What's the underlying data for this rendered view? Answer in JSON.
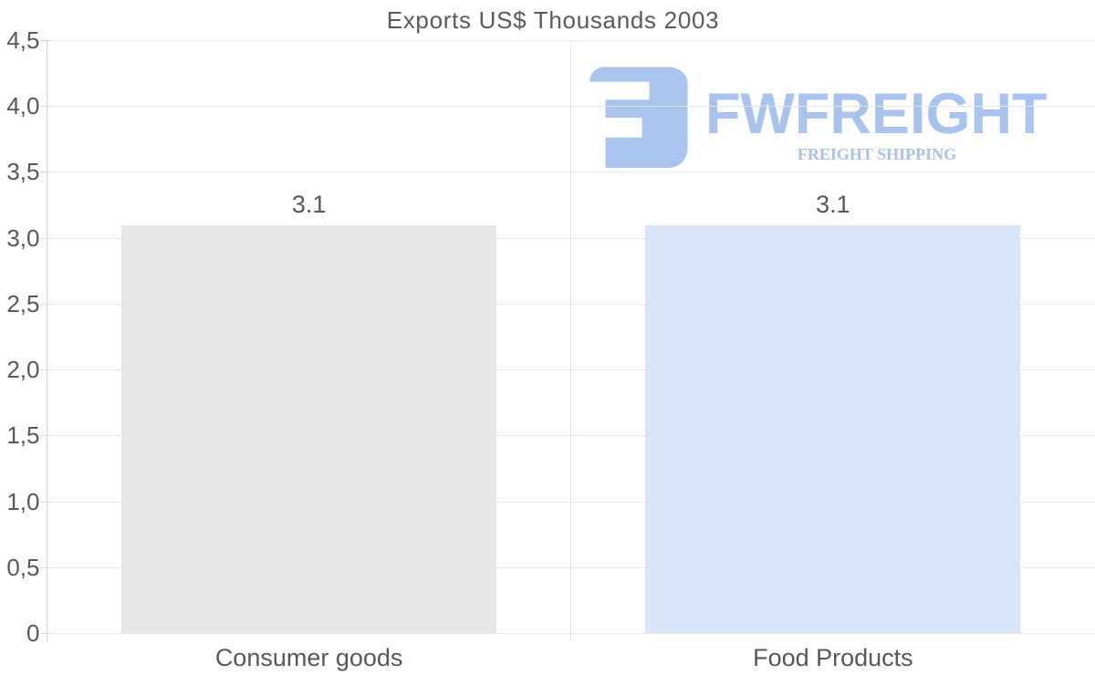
{
  "chart_data": {
    "type": "bar",
    "title": "Exports US$ Thousands 2003",
    "categories": [
      "Consumer goods",
      "Food Products"
    ],
    "series": [
      {
        "name": "Exports",
        "values": [
          3.1,
          3.1
        ],
        "value_labels": [
          "3.1",
          "3.1"
        ],
        "bar_colors": [
          "#e7e7e7",
          "#d7e7f9"
        ]
      }
    ],
    "xlabel": "",
    "ylabel": "",
    "ylim": [
      0,
      4.5
    ],
    "ytick_step": 0.5,
    "ytick_labels": [
      "0",
      "0,5",
      "1,0",
      "1,5",
      "2,0",
      "2,5",
      "3,0",
      "3,5",
      "4,0",
      "4,5"
    ],
    "grid": "horizontal gridlines at each 0.5 step, vertical gridline between categories",
    "legend_position": "none",
    "decimal_separator_axis": ",",
    "decimal_separator_labels": "."
  },
  "watermark": {
    "brand": "FWFREIGHT",
    "tagline": "FREIGHT SHIPPING",
    "icon": "rounded-square-reversed-F-logo-icon",
    "brand_color": "#a7c3ee",
    "tagline_color": "#aac2e9",
    "icon_color": "#a9c4ef"
  },
  "colors": {
    "background": "#ffffff",
    "title_text": "#5b5b5d",
    "axis_label_text": "#58585a",
    "value_label_text": "#58585a",
    "category_label_text": "#58585a",
    "gridline": "#e6e6e6",
    "axis_line": "#d4d4d4",
    "tick": "#d9d9d9"
  }
}
